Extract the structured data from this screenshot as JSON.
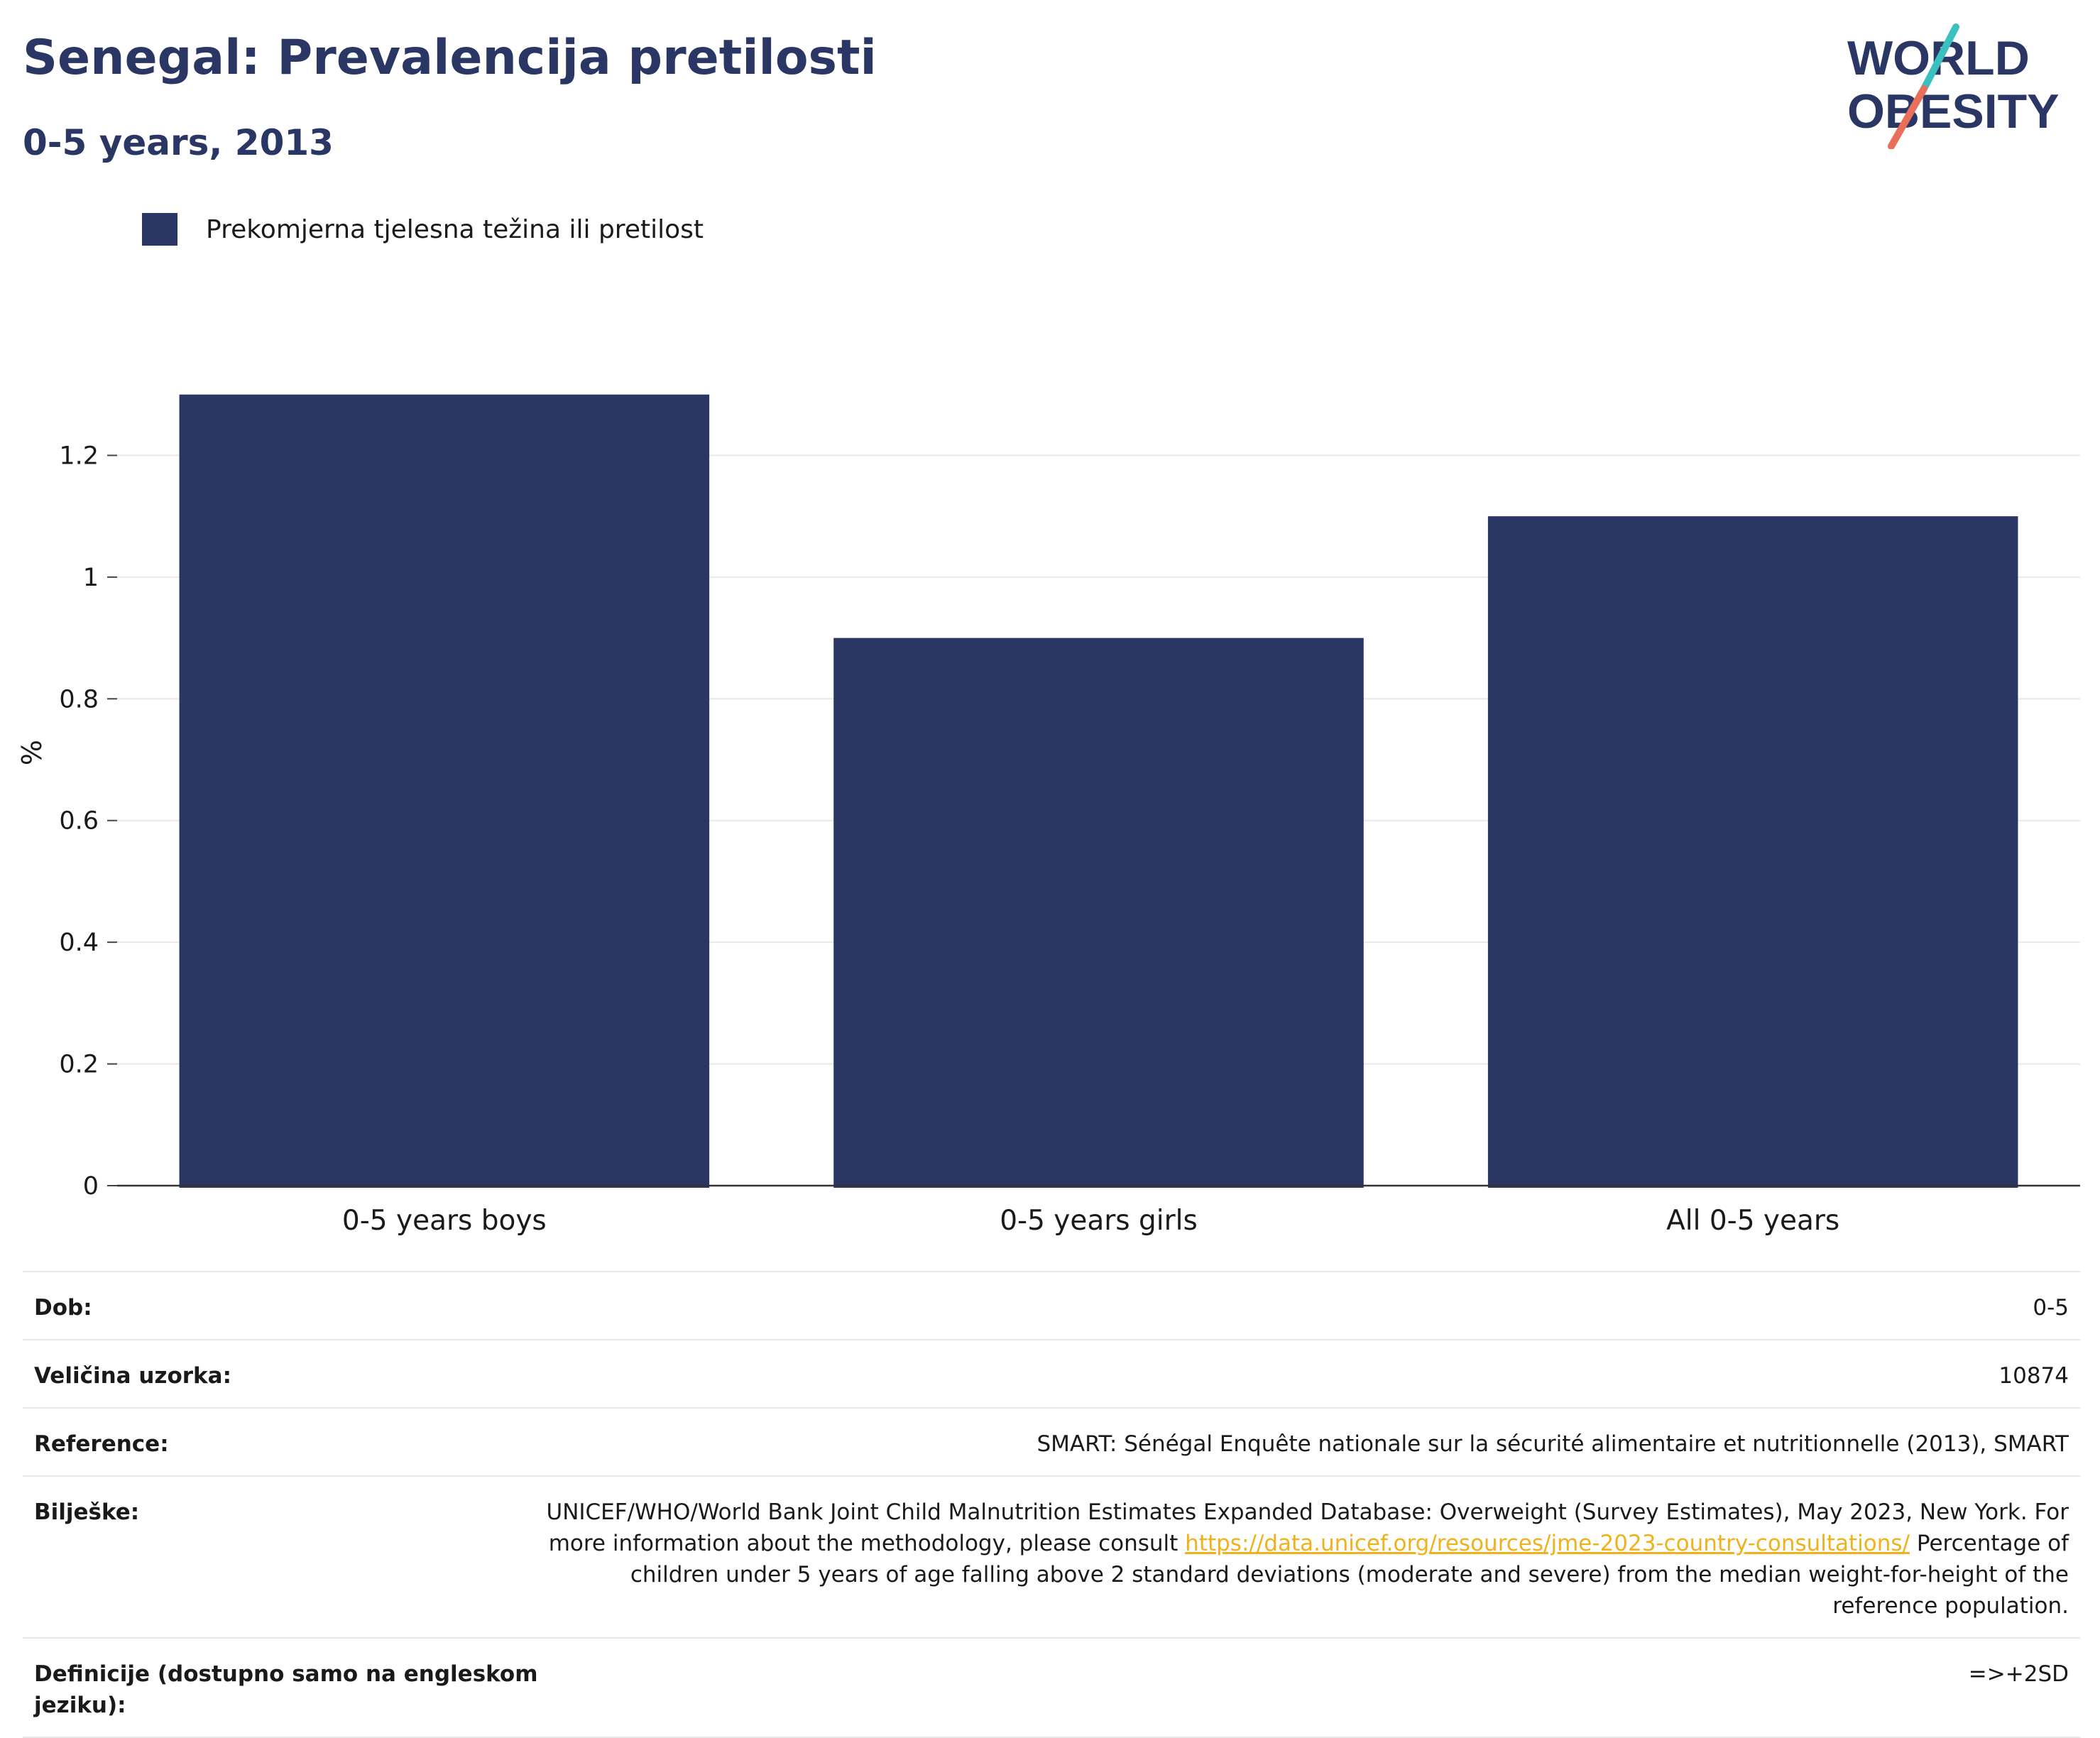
{
  "header": {
    "title": "Senegal: Prevalencija pretilosti",
    "subtitle": "0-5 years, 2013",
    "logo": {
      "line1": "WORLD",
      "line2": "OBESITY",
      "colors": {
        "text": "#2a3663",
        "slash_top": "#3cbfbf",
        "slash_bottom": "#e8705b"
      }
    }
  },
  "legend": {
    "items": [
      {
        "label": "Prekomjerna tjelesna težina ili pretilost",
        "color": "#2a3663"
      }
    ]
  },
  "chart_data": {
    "type": "bar",
    "categories": [
      "0-5 years boys",
      "0-5 years girls",
      "All 0-5 years"
    ],
    "series": [
      {
        "name": "Prekomjerna tjelesna težina ili pretilost",
        "values": [
          1.3,
          0.9,
          1.1
        ],
        "color": "#2a3663"
      }
    ],
    "ylabel": "%",
    "ylim": [
      0,
      1.4
    ],
    "yticks": [
      0,
      0.2,
      0.4,
      0.6,
      0.8,
      1,
      1.2
    ],
    "ytick_labels": [
      "0",
      "0.2",
      "0.4",
      "0.6",
      "0.8",
      "1",
      "1.2"
    ],
    "grid": true,
    "legend_position": "top-left"
  },
  "info": {
    "rows": [
      {
        "label": "Dob:",
        "value": "0-5"
      },
      {
        "label": "Veličina uzorka:",
        "value": "10874"
      },
      {
        "label": "Reference:",
        "value": "SMART: Sénégal Enquête nationale sur la sécurité alimentaire et nutritionnelle (2013), SMART"
      },
      {
        "label": "Bilješke:",
        "value_before": "UNICEF/WHO/World Bank Joint Child Malnutrition Estimates Expanded Database: Overweight (Survey Estimates), May 2023, New York. For more information about the methodology, please consult ",
        "link": "https://data.unicef.org/resources/jme-2023-country-consultations/",
        "value_after": " Percentage of children under 5 years of age falling above 2 standard deviations (moderate and severe) from the median weight-for-height of the reference population."
      },
      {
        "label": "Definicije (dostupno samo na engleskom jeziku):",
        "value": "=>+2SD"
      }
    ]
  }
}
